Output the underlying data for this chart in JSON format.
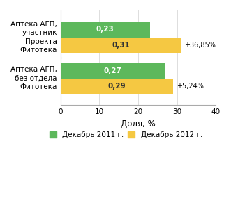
{
  "categories": [
    "Аптека АГП,\nучастник\nПроекта\nФитотека",
    "Аптека АГП,\nбез отдела\nФитотека"
  ],
  "green_values": [
    23,
    27
  ],
  "yellow_values": [
    31,
    29
  ],
  "green_color": "#5db85c",
  "yellow_color": "#f5c842",
  "bar_labels_green": [
    "0,23",
    "0,27"
  ],
  "bar_labels_yellow": [
    "0,31",
    "0,29"
  ],
  "annotations": [
    "+36,85%",
    "+5,24%"
  ],
  "xlabel": "Доля, %",
  "xlim": [
    0,
    40
  ],
  "xticks": [
    0,
    10,
    20,
    30,
    40
  ],
  "legend_labels": [
    "Декабрь 2011 г.",
    "Декабрь 2012 г."
  ],
  "bar_height": 0.38,
  "label_fontsize": 7.5,
  "tick_fontsize": 7.5,
  "annotation_fontsize": 7,
  "legend_fontsize": 7.5,
  "xlabel_fontsize": 8.5
}
